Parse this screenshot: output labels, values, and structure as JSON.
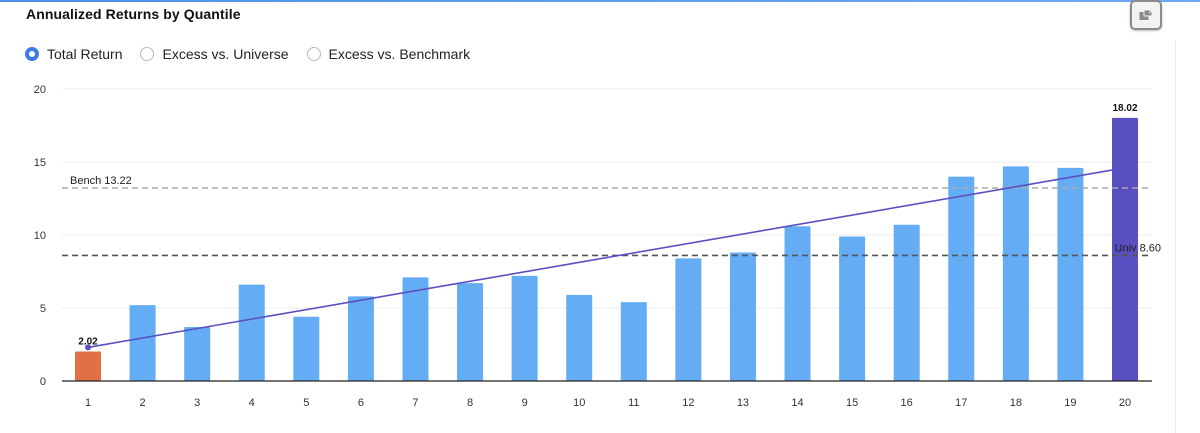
{
  "header": {
    "title": "Annualized Returns by Quantile",
    "export_icon": "export-icon"
  },
  "options": {
    "items": [
      {
        "label": "Total Return",
        "selected": true
      },
      {
        "label": "Excess vs. Universe",
        "selected": false
      },
      {
        "label": "Excess vs. Benchmark",
        "selected": false
      }
    ]
  },
  "colors": {
    "bar": "#64adf5",
    "first_bar": "#e36f45",
    "last_bar": "#5a4fc0",
    "trend_line": "#5b4fc2",
    "bench_line": "#a9a9a9",
    "univ_line": "#555555",
    "accent": "#3b7be8"
  },
  "chart_data": {
    "type": "bar",
    "categories": [
      "1",
      "2",
      "3",
      "4",
      "5",
      "6",
      "7",
      "8",
      "9",
      "10",
      "11",
      "12",
      "13",
      "14",
      "15",
      "16",
      "17",
      "18",
      "19",
      "20"
    ],
    "values": [
      2.02,
      5.2,
      3.7,
      6.6,
      4.4,
      5.8,
      7.1,
      6.7,
      7.2,
      5.9,
      5.4,
      8.4,
      8.8,
      10.6,
      9.9,
      10.7,
      14.0,
      14.7,
      14.6,
      18.02
    ],
    "ylim": [
      0,
      20
    ],
    "yticks": [
      "0",
      "5",
      "10",
      "15",
      "20"
    ],
    "grid": true,
    "data_labels": [
      {
        "category": "1",
        "text": "2.02"
      },
      {
        "category": "20",
        "text": "18.02"
      }
    ],
    "reference_lines": [
      {
        "label": "Bench 13.22",
        "value": 13.22,
        "style": "dashed"
      },
      {
        "label": "Univ 8.60",
        "value": 8.6,
        "style": "dashed"
      }
    ],
    "trend_line": {
      "start_value": 2.3,
      "end_value": 14.6
    }
  }
}
